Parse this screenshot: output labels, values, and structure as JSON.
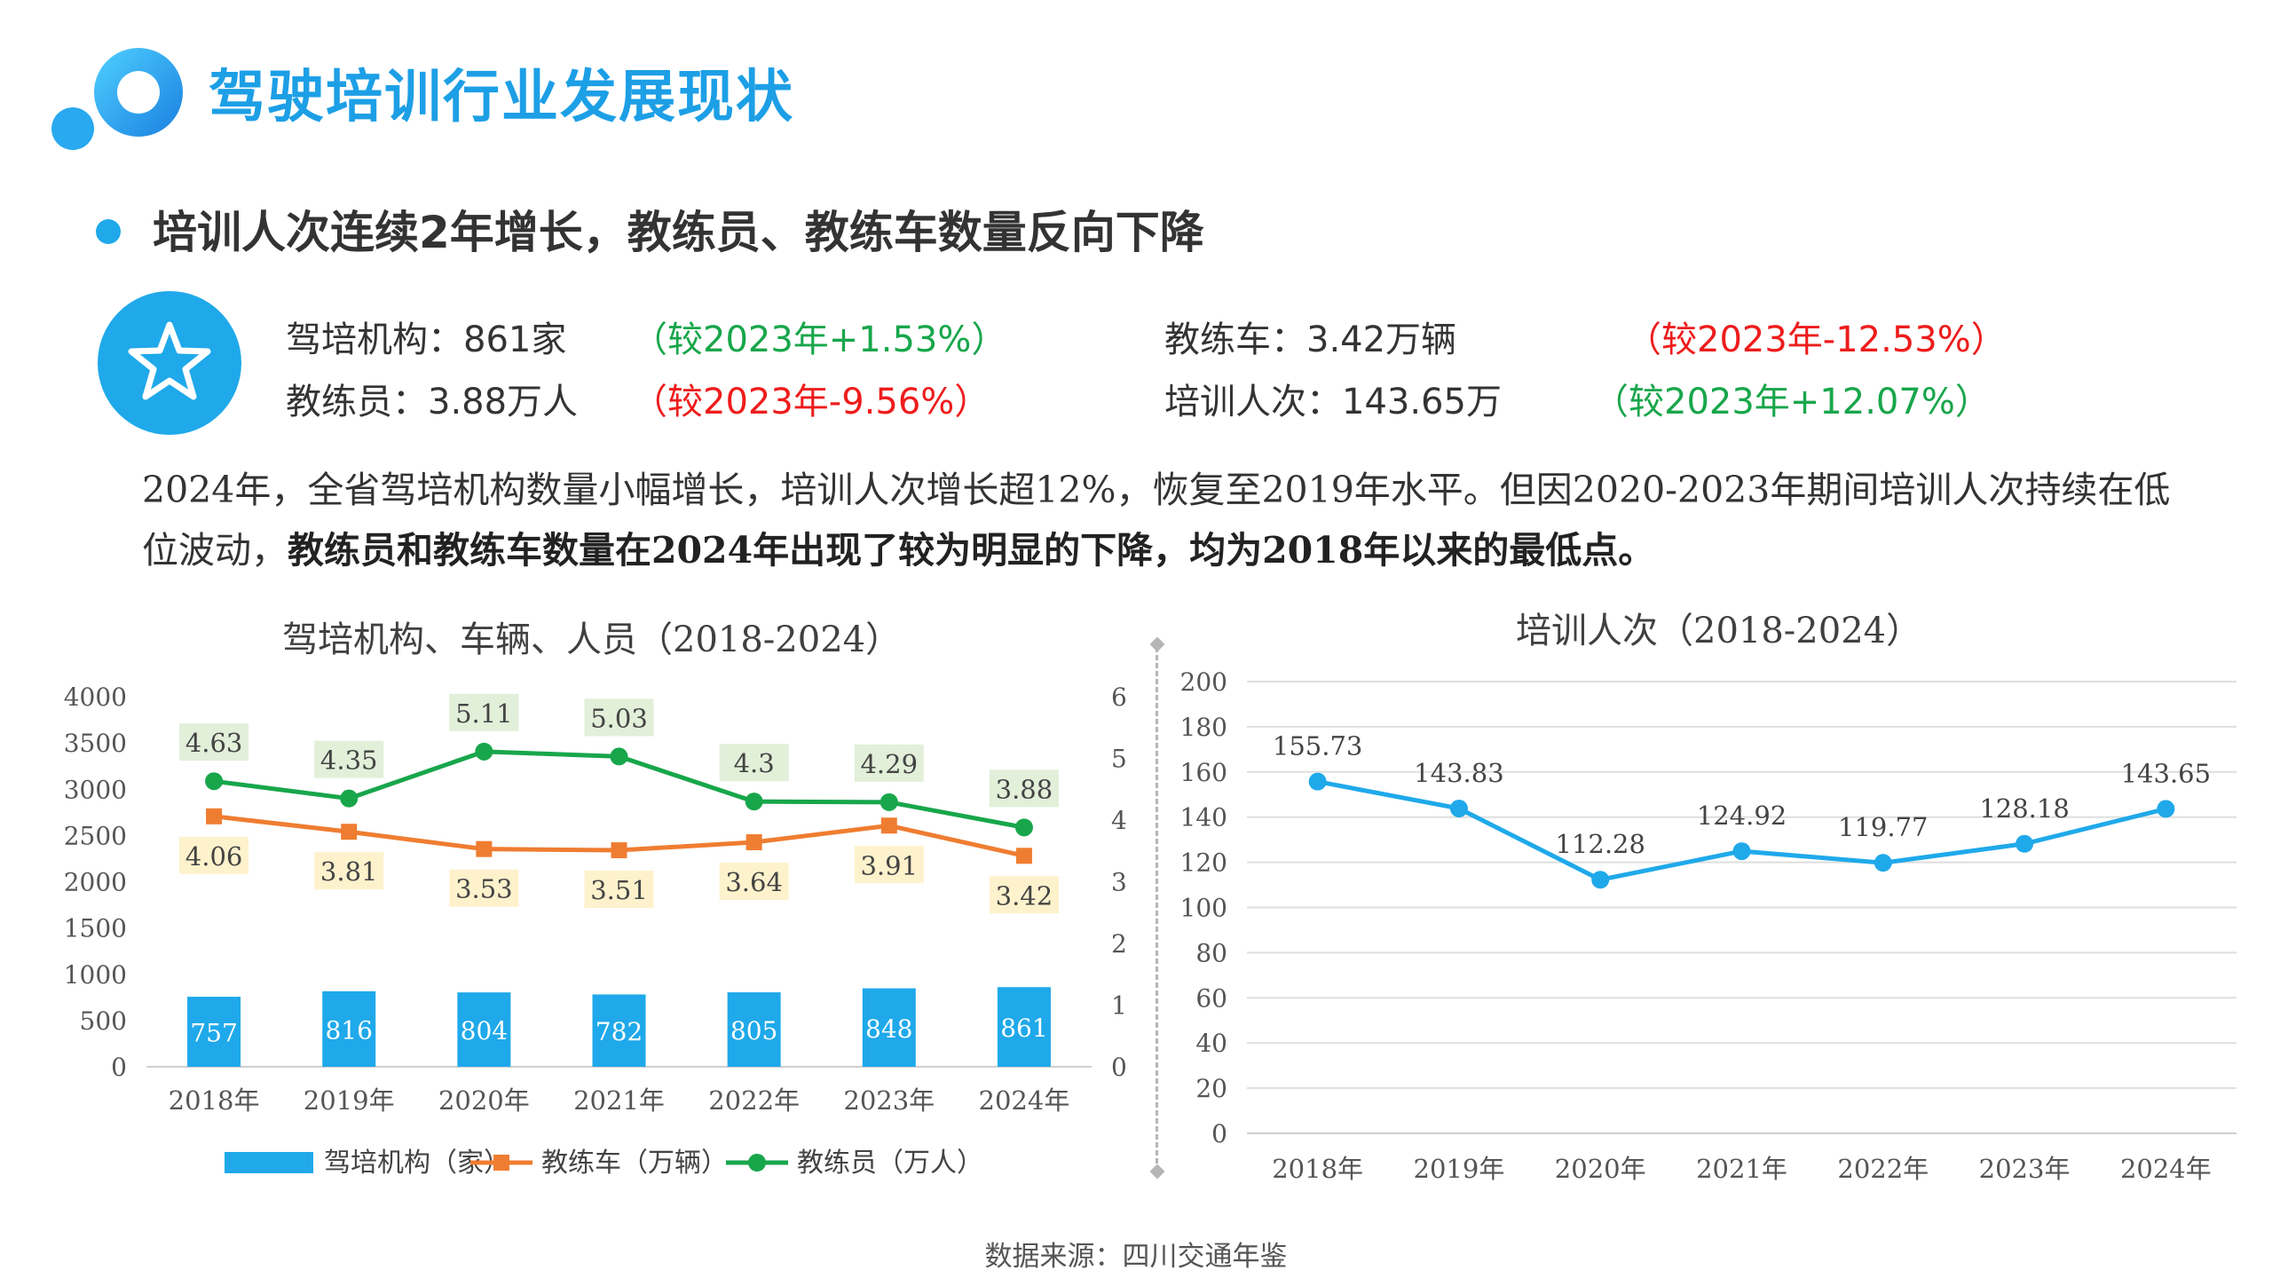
{
  "header": {
    "title": "驾驶培训行业发展现状"
  },
  "bullet": {
    "text": "培训人次连续2年增长，教练员、教练车数量反向下降"
  },
  "stats": [
    {
      "label": "驾培机构：861家",
      "change": "（较2023年+1.53%）",
      "trend": "up"
    },
    {
      "label": "教练员：3.88万人",
      "change": "（较2023年-9.56%）",
      "trend": "down"
    },
    {
      "label": "教练车：3.42万辆",
      "change": "（较2023年-12.53%）",
      "trend": "down"
    },
    {
      "label": "培训人次：143.65万",
      "change": "（较2023年+12.07%）",
      "trend": "up"
    }
  ],
  "paragraph": {
    "plain": "2024年，全省驾培机构数量小幅增长，培训人次增长超12%，恢复至2019年水平。但因2020-2023年期间培训人次持续在低位波动，",
    "bold": "教练员和教练车数量在2024年出现了较为明显的下降，均为2018年以来的最低点。"
  },
  "source": "数据来源：四川交通年鉴",
  "colors": {
    "accent": "#1d9fe6",
    "bar": "#1fa9ea",
    "orange": "#ef7d31",
    "green": "#18a64b",
    "red": "#ee1c1c"
  },
  "chart_data": [
    {
      "type": "bar+line",
      "title": "驾培机构、车辆、人员（2018-2024）",
      "categories": [
        "2018年",
        "2019年",
        "2020年",
        "2021年",
        "2022年",
        "2023年",
        "2024年"
      ],
      "y_left": {
        "ticks": [
          "0",
          "500",
          "1000",
          "1500",
          "2000",
          "2500",
          "3000",
          "3500",
          "4000"
        ],
        "range": [
          0,
          4000
        ]
      },
      "y_right": {
        "ticks": [
          "0",
          "1",
          "2",
          "3",
          "4",
          "5",
          "6"
        ],
        "range": [
          0,
          6
        ]
      },
      "series": [
        {
          "name": "驾培机构（家）",
          "kind": "bar",
          "axis": "left",
          "values": [
            757,
            816,
            804,
            782,
            805,
            848,
            861
          ],
          "labels": [
            "757",
            "816",
            "804",
            "782",
            "805",
            "848",
            "861"
          ]
        },
        {
          "name": "教练车（万辆）",
          "kind": "line",
          "axis": "right",
          "marker": "square",
          "values": [
            4.06,
            3.81,
            3.53,
            3.51,
            3.64,
            3.91,
            3.42
          ],
          "labels": [
            "4.06",
            "3.81",
            "3.53",
            "3.51",
            "3.64",
            "3.91",
            "3.42"
          ]
        },
        {
          "name": "教练员（万人）",
          "kind": "line",
          "axis": "right",
          "marker": "circle",
          "values": [
            4.63,
            4.35,
            5.11,
            5.03,
            4.3,
            4.29,
            3.88
          ],
          "labels": [
            "4.63",
            "4.35",
            "5.11",
            "5.03",
            "4.3",
            "4.29",
            "3.88"
          ]
        }
      ],
      "legend": "bottom"
    },
    {
      "type": "line",
      "title": "培训人次（2018-2024）",
      "categories": [
        "2018年",
        "2019年",
        "2020年",
        "2021年",
        "2022年",
        "2023年",
        "2024年"
      ],
      "y": {
        "ticks": [
          "0",
          "20",
          "40",
          "60",
          "80",
          "100",
          "120",
          "140",
          "160",
          "180",
          "200"
        ],
        "range": [
          0,
          200
        ]
      },
      "grid": true,
      "series": [
        {
          "values": [
            155.73,
            143.83,
            112.28,
            124.92,
            119.77,
            128.18,
            143.65
          ],
          "labels": [
            "155.73",
            "143.83",
            "112.28",
            "124.92",
            "119.77",
            "128.18",
            "143.65"
          ]
        }
      ]
    }
  ]
}
